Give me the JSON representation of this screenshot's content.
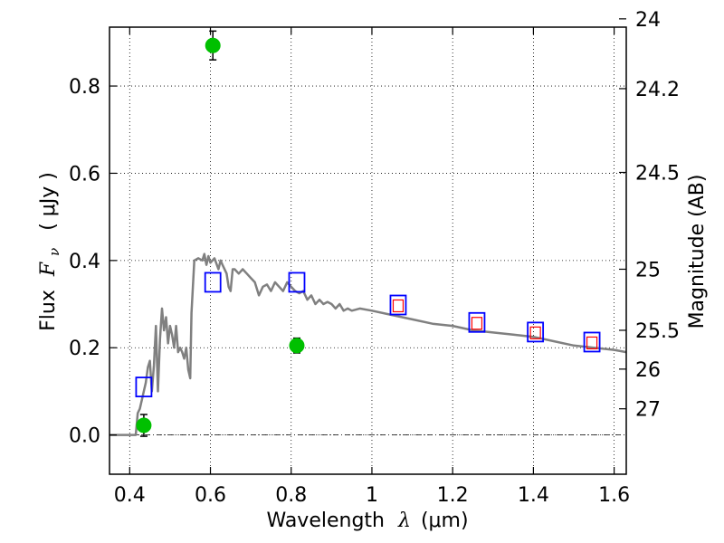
{
  "chart_data": {
    "type": "scatter",
    "xlabel": {
      "text": "Wavelength",
      "symbol": "λ",
      "unit": "(μm)"
    },
    "ylabel": {
      "text": "Flux",
      "symbol": "F",
      "subscript": "ν",
      "unit": "( μJy )"
    },
    "ylabel_right": "Magnitude (AB)",
    "xlim": [
      0.35,
      1.63
    ],
    "ylim": [
      -0.09,
      0.935
    ],
    "x_ticks": [
      {
        "value": 0.4,
        "label": "0.4"
      },
      {
        "value": 0.6,
        "label": "0.6"
      },
      {
        "value": 0.8,
        "label": "0.8"
      },
      {
        "value": 1.0,
        "label": "1"
      },
      {
        "value": 1.2,
        "label": "1.2"
      },
      {
        "value": 1.4,
        "label": "1.4"
      },
      {
        "value": 1.6,
        "label": "1.6"
      }
    ],
    "y_ticks": [
      {
        "value": 0.0,
        "label": "0.0"
      },
      {
        "value": 0.2,
        "label": "0.2"
      },
      {
        "value": 0.4,
        "label": "0.4"
      },
      {
        "value": 0.6,
        "label": "0.6"
      },
      {
        "value": 0.8,
        "label": "0.8"
      }
    ],
    "right_ticks": [
      {
        "label": "24",
        "flux": 0.954
      },
      {
        "label": "24.2",
        "flux": 0.794
      },
      {
        "label": "24.5",
        "flux": 0.602
      },
      {
        "label": "25",
        "flux": 0.38
      },
      {
        "label": "25.5",
        "flux": 0.24
      },
      {
        "label": "26",
        "flux": 0.151
      },
      {
        "label": "27",
        "flux": 0.06
      }
    ],
    "grid": true,
    "zero_line": true,
    "series": [
      {
        "kind": "line",
        "color": "#808080",
        "points": [
          [
            0.35,
            0.0
          ],
          [
            0.415,
            0.0
          ],
          [
            0.42,
            0.05
          ],
          [
            0.425,
            0.06
          ],
          [
            0.43,
            0.08
          ],
          [
            0.435,
            0.1
          ],
          [
            0.44,
            0.12
          ],
          [
            0.445,
            0.155
          ],
          [
            0.45,
            0.17
          ],
          [
            0.455,
            0.1
          ],
          [
            0.46,
            0.16
          ],
          [
            0.465,
            0.25
          ],
          [
            0.47,
            0.1
          ],
          [
            0.475,
            0.22
          ],
          [
            0.48,
            0.29
          ],
          [
            0.485,
            0.24
          ],
          [
            0.49,
            0.27
          ],
          [
            0.495,
            0.21
          ],
          [
            0.5,
            0.25
          ],
          [
            0.505,
            0.23
          ],
          [
            0.51,
            0.2
          ],
          [
            0.515,
            0.25
          ],
          [
            0.52,
            0.19
          ],
          [
            0.525,
            0.2
          ],
          [
            0.53,
            0.19
          ],
          [
            0.535,
            0.175
          ],
          [
            0.54,
            0.2
          ],
          [
            0.545,
            0.15
          ],
          [
            0.55,
            0.13
          ],
          [
            0.553,
            0.28
          ],
          [
            0.56,
            0.4
          ],
          [
            0.57,
            0.405
          ],
          [
            0.58,
            0.4
          ],
          [
            0.585,
            0.415
          ],
          [
            0.59,
            0.39
          ],
          [
            0.595,
            0.41
          ],
          [
            0.6,
            0.395
          ],
          [
            0.61,
            0.405
          ],
          [
            0.62,
            0.38
          ],
          [
            0.625,
            0.4
          ],
          [
            0.63,
            0.39
          ],
          [
            0.64,
            0.37
          ],
          [
            0.645,
            0.34
          ],
          [
            0.65,
            0.33
          ],
          [
            0.655,
            0.38
          ],
          [
            0.66,
            0.38
          ],
          [
            0.67,
            0.37
          ],
          [
            0.68,
            0.38
          ],
          [
            0.69,
            0.37
          ],
          [
            0.7,
            0.36
          ],
          [
            0.71,
            0.35
          ],
          [
            0.72,
            0.32
          ],
          [
            0.73,
            0.34
          ],
          [
            0.74,
            0.345
          ],
          [
            0.75,
            0.33
          ],
          [
            0.76,
            0.35
          ],
          [
            0.77,
            0.34
          ],
          [
            0.78,
            0.33
          ],
          [
            0.79,
            0.35
          ],
          [
            0.8,
            0.34
          ],
          [
            0.81,
            0.33
          ],
          [
            0.82,
            0.325
          ],
          [
            0.83,
            0.33
          ],
          [
            0.84,
            0.31
          ],
          [
            0.85,
            0.32
          ],
          [
            0.86,
            0.3
          ],
          [
            0.87,
            0.31
          ],
          [
            0.88,
            0.3
          ],
          [
            0.89,
            0.305
          ],
          [
            0.9,
            0.3
          ],
          [
            0.91,
            0.29
          ],
          [
            0.92,
            0.3
          ],
          [
            0.93,
            0.285
          ],
          [
            0.94,
            0.29
          ],
          [
            0.95,
            0.285
          ],
          [
            0.97,
            0.29
          ],
          [
            1.0,
            0.285
          ],
          [
            1.05,
            0.275
          ],
          [
            1.1,
            0.265
          ],
          [
            1.15,
            0.255
          ],
          [
            1.2,
            0.25
          ],
          [
            1.25,
            0.24
          ],
          [
            1.3,
            0.235
          ],
          [
            1.35,
            0.23
          ],
          [
            1.4,
            0.225
          ],
          [
            1.45,
            0.215
          ],
          [
            1.5,
            0.205
          ],
          [
            1.55,
            0.2
          ],
          [
            1.6,
            0.195
          ],
          [
            1.63,
            0.19
          ]
        ]
      },
      {
        "kind": "points",
        "marker": "circle",
        "color": "#00c000",
        "points": [
          {
            "x": 0.435,
            "y": 0.022,
            "err": 0.025
          },
          {
            "x": 0.606,
            "y": 0.893,
            "err": 0.033
          },
          {
            "x": 0.814,
            "y": 0.205,
            "err": 0.017
          }
        ]
      },
      {
        "kind": "points",
        "marker": "square-open",
        "color": "#0000ff",
        "points": [
          {
            "x": 0.435,
            "y": 0.11
          },
          {
            "x": 0.606,
            "y": 0.35
          },
          {
            "x": 0.814,
            "y": 0.35
          },
          {
            "x": 1.065,
            "y": 0.298
          },
          {
            "x": 1.26,
            "y": 0.258
          },
          {
            "x": 1.405,
            "y": 0.236
          },
          {
            "x": 1.545,
            "y": 0.213
          }
        ]
      },
      {
        "kind": "points",
        "marker": "square-open-small",
        "color": "#ff0000",
        "points": [
          {
            "x": 1.065,
            "y": 0.296
          },
          {
            "x": 1.26,
            "y": 0.256
          },
          {
            "x": 1.405,
            "y": 0.234
          },
          {
            "x": 1.545,
            "y": 0.211
          }
        ]
      }
    ]
  }
}
